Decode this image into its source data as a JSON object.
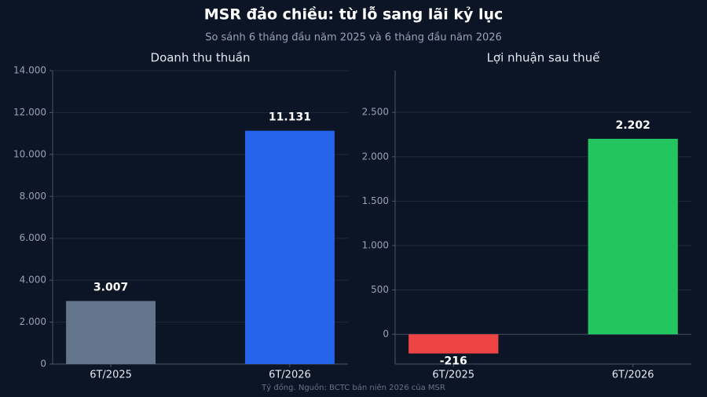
{
  "title": "MSR đảo chiều: từ lỗ sang lãi kỷ lục",
  "subtitle": "So sánh 6 tháng đầu năm 2025 và 6 tháng đầu năm 2026",
  "note": "Tỷ đồng. Nguồn: BCTC bán niên 2026 của MSR",
  "chart_data": [
    {
      "type": "bar",
      "title": "Doanh thu thuần",
      "categories": [
        "6T/2025",
        "6T/2026"
      ],
      "values": [
        3007,
        11131
      ],
      "value_labels": [
        "3.007",
        "11.131"
      ],
      "colors": [
        "#64748b",
        "#2563eb"
      ],
      "ylim": [
        0,
        14000
      ],
      "yticks": [
        0,
        {
          "value": 2000,
          "label": "2.000"
        },
        {
          "value": 4000,
          "label": "4.000"
        },
        {
          "value": 6000,
          "label": "6.000"
        },
        {
          "value": 8000,
          "label": "8.000"
        },
        {
          "value": 10000,
          "label": "10.000"
        },
        {
          "value": 12000,
          "label": "12.000"
        },
        {
          "value": 14000,
          "label": "14.000"
        }
      ],
      "grid": true
    },
    {
      "type": "bar",
      "title": "Lợi nhuận sau thuế",
      "categories": [
        "6T/2025",
        "6T/2026"
      ],
      "values": [
        -216,
        2202
      ],
      "value_labels": [
        "-216",
        "2.202"
      ],
      "colors": [
        "#ef4444",
        "#22c55e"
      ],
      "ylim": [
        -335,
        2970
      ],
      "yticks": [
        0,
        500,
        {
          "value": 1000,
          "label": "1.000"
        },
        {
          "value": 1500,
          "label": "1.500"
        },
        {
          "value": 2000,
          "label": "2.000"
        },
        {
          "value": 2500,
          "label": "2.500"
        }
      ],
      "grid": true
    }
  ]
}
